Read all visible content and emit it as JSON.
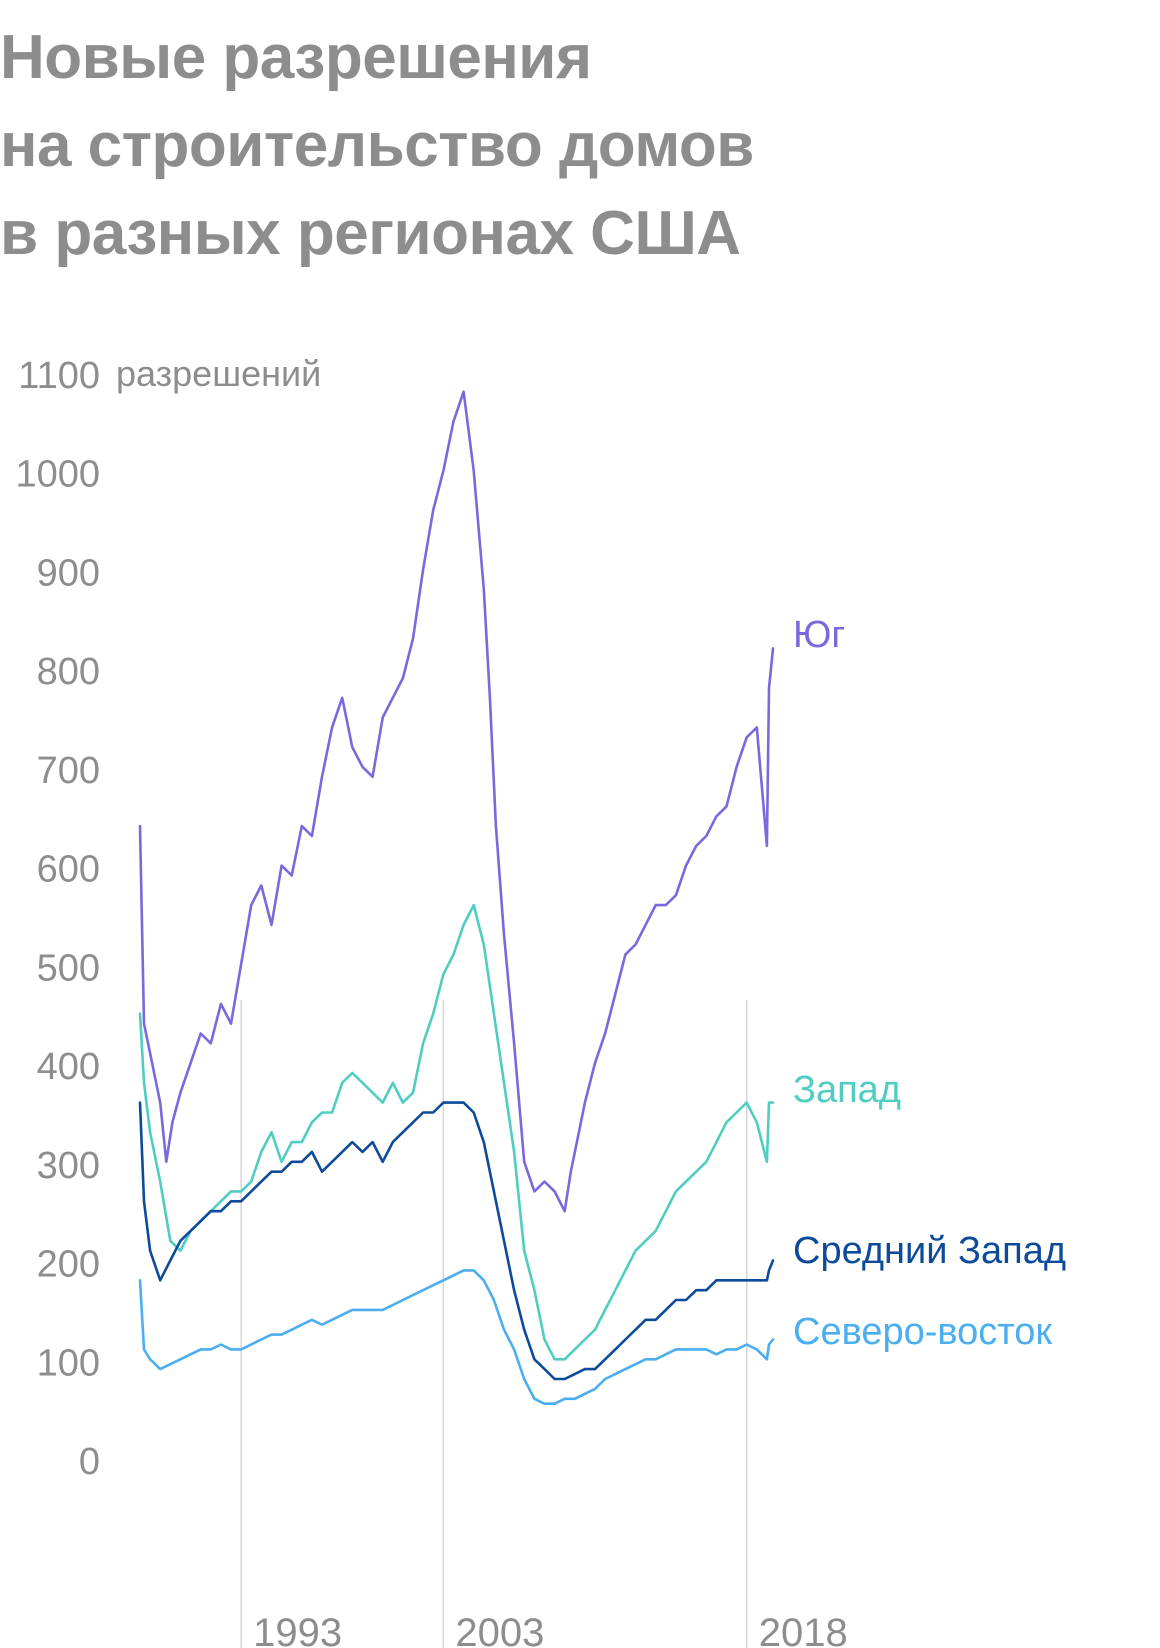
{
  "title_lines": [
    "Новые разрешения",
    "на строительство домов",
    "в разных регионах США"
  ],
  "colors": {
    "South": "#7b68dd",
    "West": "#4fcdc2",
    "Midwest": "#0d4a9a",
    "Northeast": "#4aaef0",
    "text": "#8d8d8d",
    "gridline": "#d6d6d6"
  },
  "chart_data": {
    "type": "line",
    "title": "Новые разрешения на строительство домов в разных регионах США",
    "ylabel": "разрешений",
    "y_unit_label": "1100 разрешений",
    "ylim": [
      0,
      1100
    ],
    "y_ticks": [
      0,
      100,
      200,
      300,
      400,
      500,
      600,
      700,
      800,
      900,
      1000,
      1100
    ],
    "y_tick_labels": [
      "0",
      "100",
      "200",
      "300",
      "400",
      "500",
      "600",
      "700",
      "800",
      "900",
      "1000",
      "1100"
    ],
    "xlim": [
      1988,
      2019.3
    ],
    "x_ticks": [
      1993,
      2003,
      2018
    ],
    "x_tick_labels": [
      "1993",
      "2003",
      "2018"
    ],
    "vertical_gridlines_at": [
      1993,
      2003,
      2018
    ],
    "legend": "inline labels at line ends",
    "series": [
      {
        "name": "Юг",
        "color": "#7b68dd",
        "x": [
          1988.0,
          1988.2,
          1988.5,
          1989.0,
          1989.3,
          1989.6,
          1990.0,
          1990.5,
          1991.0,
          1991.5,
          1992.0,
          1992.5,
          1993.0,
          1993.5,
          1994.0,
          1994.5,
          1995.0,
          1995.5,
          1996.0,
          1996.5,
          1997.0,
          1997.5,
          1998.0,
          1998.5,
          1999.0,
          1999.5,
          2000.0,
          2000.5,
          2001.0,
          2001.5,
          2002.0,
          2002.5,
          2003.0,
          2003.5,
          2004.0,
          2004.5,
          2005.0,
          2005.3,
          2005.6,
          2006.0,
          2006.5,
          2007.0,
          2007.5,
          2008.0,
          2008.5,
          2009.0,
          2009.3,
          2009.7,
          2010.0,
          2010.5,
          2011.0,
          2011.5,
          2012.0,
          2012.5,
          2013.0,
          2013.5,
          2014.0,
          2014.5,
          2015.0,
          2015.5,
          2016.0,
          2016.5,
          2017.0,
          2017.5,
          2018.0,
          2018.5,
          2019.0,
          2019.1,
          2019.3
        ],
        "y": [
          640,
          440,
          410,
          360,
          300,
          340,
          370,
          400,
          430,
          420,
          460,
          440,
          500,
          560,
          580,
          540,
          600,
          590,
          640,
          630,
          690,
          740,
          770,
          720,
          700,
          690,
          750,
          770,
          790,
          830,
          900,
          960,
          1000,
          1050,
          1080,
          1000,
          880,
          770,
          640,
          530,
          420,
          300,
          270,
          280,
          270,
          250,
          290,
          330,
          360,
          400,
          430,
          470,
          510,
          520,
          540,
          560,
          560,
          570,
          600,
          620,
          630,
          650,
          660,
          700,
          730,
          740,
          620,
          780,
          820
        ]
      },
      {
        "name": "Запад",
        "color": "#4fcdc2",
        "x": [
          1988.0,
          1988.2,
          1988.5,
          1989.0,
          1989.5,
          1990.0,
          1990.5,
          1991.0,
          1991.5,
          1992.0,
          1992.5,
          1993.0,
          1993.5,
          1994.0,
          1994.5,
          1995.0,
          1995.5,
          1996.0,
          1996.5,
          1997.0,
          1997.5,
          1998.0,
          1998.5,
          1999.0,
          1999.5,
          2000.0,
          2000.5,
          2001.0,
          2001.5,
          2002.0,
          2002.5,
          2003.0,
          2003.5,
          2004.0,
          2004.5,
          2005.0,
          2005.5,
          2006.0,
          2006.5,
          2007.0,
          2007.5,
          2008.0,
          2008.5,
          2009.0,
          2009.5,
          2010.0,
          2010.5,
          2011.0,
          2011.5,
          2012.0,
          2012.5,
          2013.0,
          2013.5,
          2014.0,
          2014.5,
          2015.0,
          2015.5,
          2016.0,
          2016.5,
          2017.0,
          2017.5,
          2018.0,
          2018.5,
          2019.0,
          2019.1,
          2019.3
        ],
        "y": [
          450,
          380,
          330,
          280,
          220,
          210,
          230,
          240,
          250,
          260,
          270,
          270,
          280,
          310,
          330,
          300,
          320,
          320,
          340,
          350,
          350,
          380,
          390,
          380,
          370,
          360,
          380,
          360,
          370,
          420,
          450,
          490,
          510,
          540,
          560,
          520,
          450,
          380,
          310,
          210,
          170,
          120,
          100,
          100,
          110,
          120,
          130,
          150,
          170,
          190,
          210,
          220,
          230,
          250,
          270,
          280,
          290,
          300,
          320,
          340,
          350,
          360,
          340,
          300,
          360,
          360
        ]
      },
      {
        "name": "Средний Запад",
        "color": "#0d4a9a",
        "x": [
          1988.0,
          1988.2,
          1988.5,
          1989.0,
          1989.5,
          1990.0,
          1990.5,
          1991.0,
          1991.5,
          1992.0,
          1992.5,
          1993.0,
          1993.5,
          1994.0,
          1994.5,
          1995.0,
          1995.5,
          1996.0,
          1996.5,
          1997.0,
          1997.5,
          1998.0,
          1998.5,
          1999.0,
          1999.5,
          2000.0,
          2000.5,
          2001.0,
          2001.5,
          2002.0,
          2002.5,
          2003.0,
          2003.5,
          2004.0,
          2004.5,
          2005.0,
          2005.5,
          2006.0,
          2006.5,
          2007.0,
          2007.5,
          2008.0,
          2008.5,
          2009.0,
          2009.5,
          2010.0,
          2010.5,
          2011.0,
          2011.5,
          2012.0,
          2012.5,
          2013.0,
          2013.5,
          2014.0,
          2014.5,
          2015.0,
          2015.5,
          2016.0,
          2016.5,
          2017.0,
          2017.5,
          2018.0,
          2018.5,
          2019.0,
          2019.1,
          2019.3
        ],
        "y": [
          360,
          260,
          210,
          180,
          200,
          220,
          230,
          240,
          250,
          250,
          260,
          260,
          270,
          280,
          290,
          290,
          300,
          300,
          310,
          290,
          300,
          310,
          320,
          310,
          320,
          300,
          320,
          330,
          340,
          350,
          350,
          360,
          360,
          360,
          350,
          320,
          270,
          220,
          170,
          130,
          100,
          90,
          80,
          80,
          85,
          90,
          90,
          100,
          110,
          120,
          130,
          140,
          140,
          150,
          160,
          160,
          170,
          170,
          180,
          180,
          180,
          180,
          180,
          180,
          190,
          200
        ]
      },
      {
        "name": "Северо-восток",
        "color": "#4aaef0",
        "x": [
          1988.0,
          1988.2,
          1988.5,
          1989.0,
          1989.5,
          1990.0,
          1990.5,
          1991.0,
          1991.5,
          1992.0,
          1992.5,
          1993.0,
          1993.5,
          1994.0,
          1994.5,
          1995.0,
          1995.5,
          1996.0,
          1996.5,
          1997.0,
          1997.5,
          1998.0,
          1998.5,
          1999.0,
          1999.5,
          2000.0,
          2000.5,
          2001.0,
          2001.5,
          2002.0,
          2002.5,
          2003.0,
          2003.5,
          2004.0,
          2004.5,
          2005.0,
          2005.5,
          2006.0,
          2006.5,
          2007.0,
          2007.5,
          2008.0,
          2008.5,
          2009.0,
          2009.5,
          2010.0,
          2010.5,
          2011.0,
          2011.5,
          2012.0,
          2012.5,
          2013.0,
          2013.5,
          2014.0,
          2014.5,
          2015.0,
          2015.5,
          2016.0,
          2016.5,
          2017.0,
          2017.5,
          2018.0,
          2018.5,
          2019.0,
          2019.1,
          2019.3
        ],
        "y": [
          180,
          110,
          100,
          90,
          95,
          100,
          105,
          110,
          110,
          115,
          110,
          110,
          115,
          120,
          125,
          125,
          130,
          135,
          140,
          135,
          140,
          145,
          150,
          150,
          150,
          150,
          155,
          160,
          165,
          170,
          175,
          180,
          185,
          190,
          190,
          180,
          160,
          130,
          110,
          80,
          60,
          55,
          55,
          60,
          60,
          65,
          70,
          80,
          85,
          90,
          95,
          100,
          100,
          105,
          110,
          110,
          110,
          110,
          105,
          110,
          110,
          115,
          110,
          100,
          115,
          120
        ]
      }
    ]
  }
}
